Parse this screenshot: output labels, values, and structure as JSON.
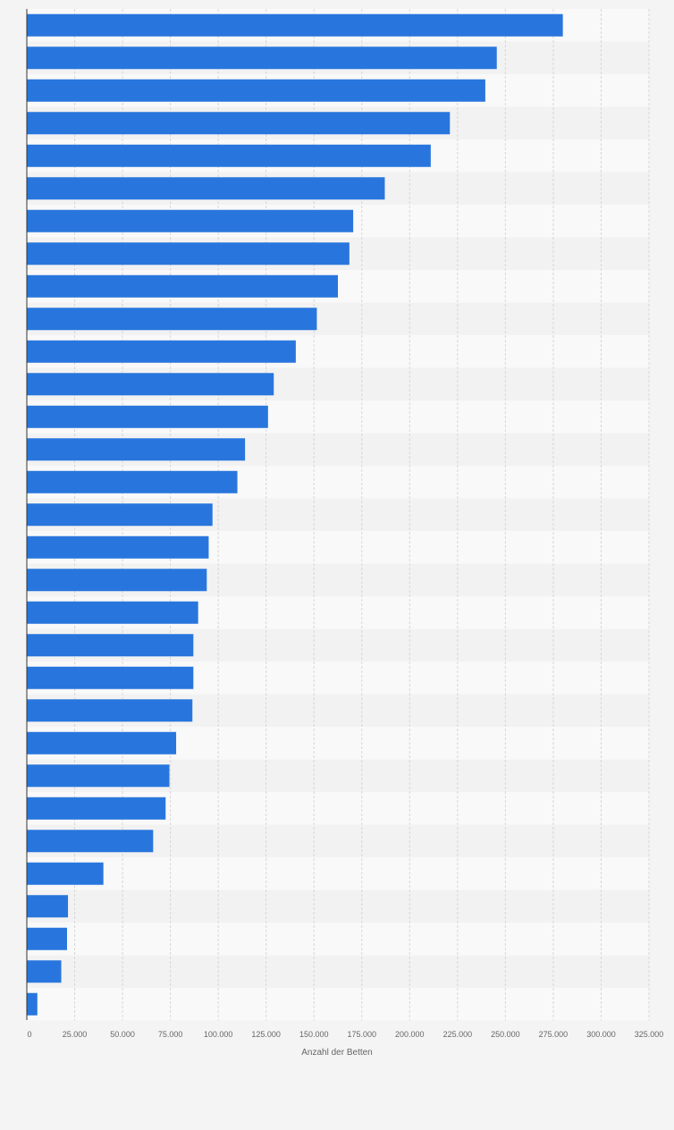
{
  "chart_data": {
    "type": "bar",
    "orientation": "horizontal",
    "title": "",
    "ylabel": "",
    "xlabel": "Anzahl der Betten",
    "xlim": [
      0,
      325000
    ],
    "grid": true,
    "legend": "none",
    "tick_labels": [
      "0",
      "25.000",
      "50.000",
      "75.000",
      "100.000",
      "125.000",
      "150.000",
      "175.000",
      "200.000",
      "225.000",
      "250.000",
      "275.000",
      "300.000",
      "325.000"
    ],
    "tick_values": [
      0,
      25000,
      50000,
      75000,
      100000,
      125000,
      150000,
      175000,
      200000,
      225000,
      250000,
      275000,
      300000,
      325000
    ],
    "values": [
      280000,
      245500,
      239500,
      221000,
      211000,
      187000,
      170500,
      168500,
      162500,
      151500,
      140500,
      129000,
      126000,
      114000,
      110000,
      97000,
      95000,
      94000,
      89500,
      87000,
      87000,
      86500,
      78000,
      74500,
      72500,
      66000,
      40000,
      21500,
      21000,
      18000,
      5500
    ],
    "colors": {
      "bar": "#2876dd",
      "page_background": "#f4f4f4",
      "band_light": "#f9f9f9",
      "band_dark": "#f2f2f2",
      "grid": "#d7d7d7",
      "axis": "#333333",
      "tick_text": "#666666"
    }
  }
}
